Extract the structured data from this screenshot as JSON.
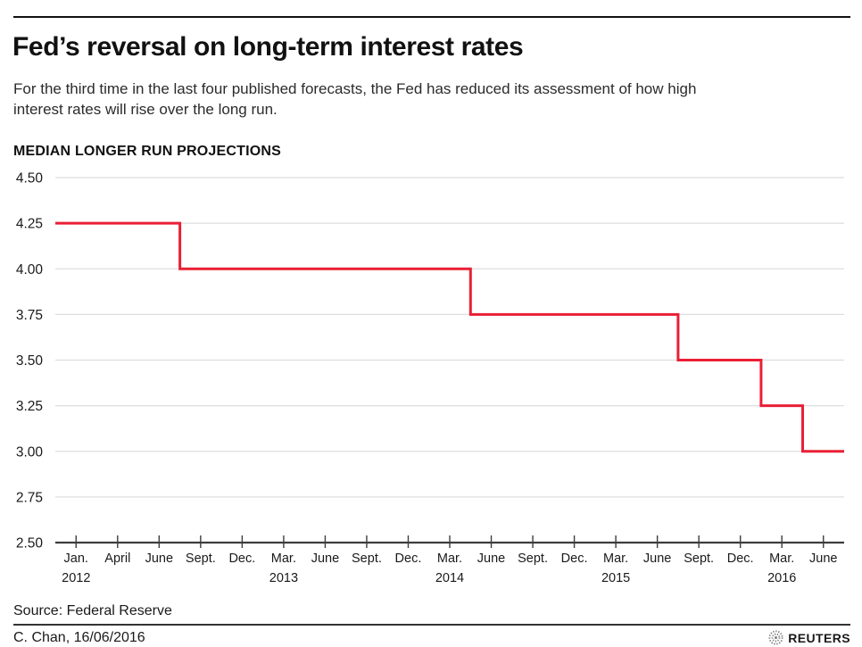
{
  "header": {
    "title": "Fed’s reversal on long-term interest rates",
    "subtitle": "For the third time in the last four published forecasts, the Fed has reduced its assessment of how high interest rates will rise over the long run."
  },
  "chart_data": {
    "type": "line",
    "step_style": "center",
    "title": "MEDIAN LONGER RUN PROJECTIONS",
    "categories": [
      "Jan.",
      "April",
      "June",
      "Sept.",
      "Dec.",
      "Mar.",
      "June",
      "Sept.",
      "Dec.",
      "Mar.",
      "June",
      "Sept.",
      "Dec.",
      "Mar.",
      "June",
      "Sept.",
      "Dec.",
      "Mar.",
      "June"
    ],
    "year_labels": {
      "0": "2012",
      "5": "2013",
      "9": "2014",
      "13": "2015",
      "17": "2016"
    },
    "values": [
      4.25,
      4.25,
      4.25,
      4.0,
      4.0,
      4.0,
      4.0,
      4.0,
      4.0,
      4.0,
      3.75,
      3.75,
      3.75,
      3.75,
      3.75,
      3.5,
      3.5,
      3.25,
      3.0
    ],
    "yticks": [
      4.5,
      4.25,
      4.0,
      3.75,
      3.5,
      3.25,
      3.0,
      2.75,
      2.5
    ],
    "ylim": [
      2.5,
      4.5
    ],
    "xlabel": "",
    "ylabel": "",
    "grid": true,
    "legend": "none",
    "colors": {
      "line": "#e91f35",
      "grid": "#dedede",
      "axis": "#3d3d3d",
      "tick_text": "#1a1a1a",
      "rule": "#111111"
    }
  },
  "footer": {
    "source": "Source: Federal Reserve",
    "credit": "C. Chan, 16/06/2016",
    "brand": "REUTERS"
  }
}
